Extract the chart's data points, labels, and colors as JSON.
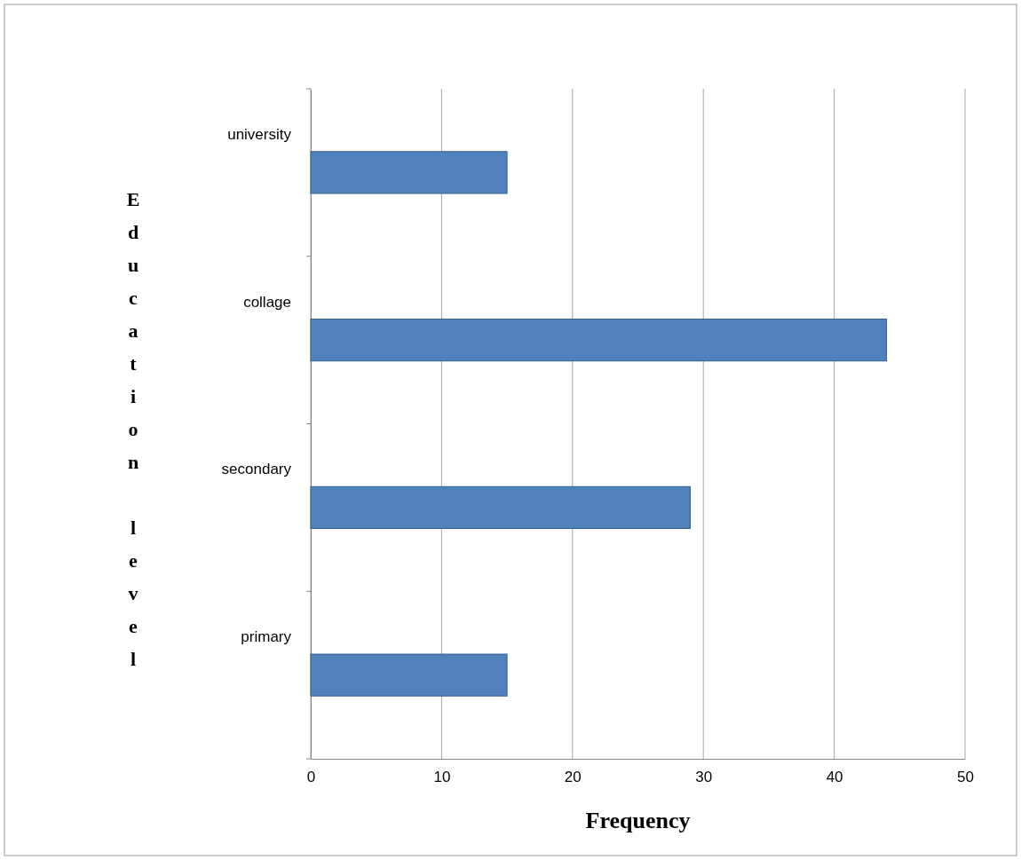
{
  "chart_data": {
    "type": "bar",
    "orientation": "horizontal",
    "categories": [
      "university",
      "collage",
      "secondary",
      "primary"
    ],
    "values": [
      15,
      44,
      29,
      15
    ],
    "color": "#4f81bd",
    "xlim": [
      0,
      50
    ],
    "xticks": [
      0,
      10,
      20,
      30,
      40,
      50
    ],
    "grid": "x",
    "xlabel": "Frequency",
    "ylabel": "Education level"
  }
}
